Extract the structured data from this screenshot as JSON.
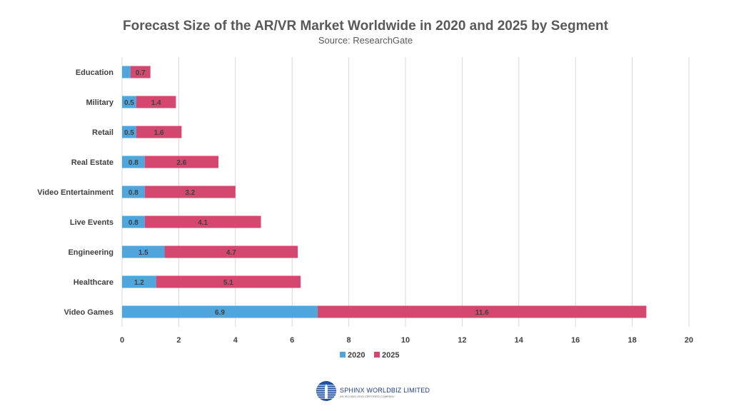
{
  "chart_data": {
    "type": "bar",
    "orientation": "horizontal",
    "stacked": true,
    "title": "Forecast Size of the AR/VR Market Worldwide in 2020 and 2025 by Segment",
    "subtitle": "Source: ResearchGate",
    "categories": [
      "Education",
      "Military",
      "Retail",
      "Real Estate",
      "Video Entertainment",
      "Live Events",
      "Engineering",
      "Healthcare",
      "Video Games"
    ],
    "series": [
      {
        "name": "2020",
        "color": "#4ea6dc",
        "values": [
          0.3,
          0.5,
          0.5,
          0.8,
          0.8,
          0.8,
          1.5,
          1.2,
          6.9
        ],
        "labels": [
          "",
          "0.5",
          "0.5",
          "0.8",
          "0.8",
          "0.8",
          "1.5",
          "1.2",
          "6.9"
        ]
      },
      {
        "name": "2025",
        "color": "#d4476f",
        "values": [
          0.7,
          1.4,
          1.6,
          2.6,
          3.2,
          4.1,
          4.7,
          5.1,
          11.6
        ],
        "labels": [
          "0.7",
          "1.4",
          "1.6",
          "2.6",
          "3.2",
          "4.1",
          "4.7",
          "5.1",
          "11.6"
        ]
      }
    ],
    "xlim": [
      0,
      20
    ],
    "xticks": [
      0,
      2,
      4,
      6,
      8,
      10,
      12,
      14,
      16,
      18,
      20
    ],
    "xlabel": "",
    "ylabel": "",
    "grid": "vertical",
    "legend": "bottom",
    "gridColor": "#d9d9d9"
  },
  "logo": {
    "name": "SPHINX WORLDBIZ LIMITED",
    "tagline": "AN ISO 9001:2015 CERTIFIED COMPANY"
  }
}
